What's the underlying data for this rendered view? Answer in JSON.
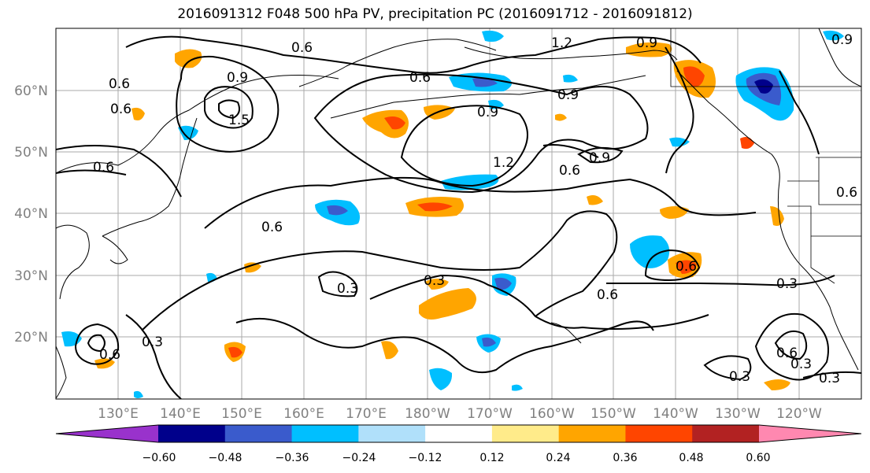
{
  "title": "2016091312 F048 500 hPa PV, precipitation PC (2016091712 - 2016091812)",
  "map": {
    "lat_labels": [
      "60°N",
      "50°N",
      "40°N",
      "30°N",
      "20°N"
    ],
    "lon_labels": [
      "130°E",
      "140°E",
      "150°E",
      "160°E",
      "170°E",
      "180°W",
      "170°W",
      "160°W",
      "150°W",
      "140°W",
      "130°W",
      "120°W"
    ],
    "contour_labels": [
      "0.6",
      "1.2",
      "0.9",
      "0.9",
      "0.6",
      "1.5",
      "0.9",
      "0.6",
      "0.6",
      "0.9",
      "1.2",
      "0.9",
      "0.6",
      "0.9",
      "0.6",
      "0.6",
      "0.3",
      "0.3",
      "0.6",
      "0.6",
      "0.3",
      "0.6",
      "0.3",
      "0.6",
      "0.3",
      "0.3",
      "0.6",
      "0.3"
    ],
    "colors": {
      "coast": "#000000",
      "grid": "#aaaaaa",
      "contour": "#000000"
    }
  },
  "colorbar": {
    "tick_labels": [
      "−0.60",
      "−0.48",
      "−0.36",
      "−0.24",
      "−0.12",
      "0.12",
      "0.24",
      "0.36",
      "0.48",
      "0.60"
    ],
    "colors": [
      "#9932cc",
      "#00008b",
      "#3a5bcc",
      "#00bfff",
      "#b0e0fa",
      "#ffffff",
      "#ffeb8a",
      "#ffa500",
      "#ff4500",
      "#b22222",
      "#ff88b0"
    ]
  }
}
